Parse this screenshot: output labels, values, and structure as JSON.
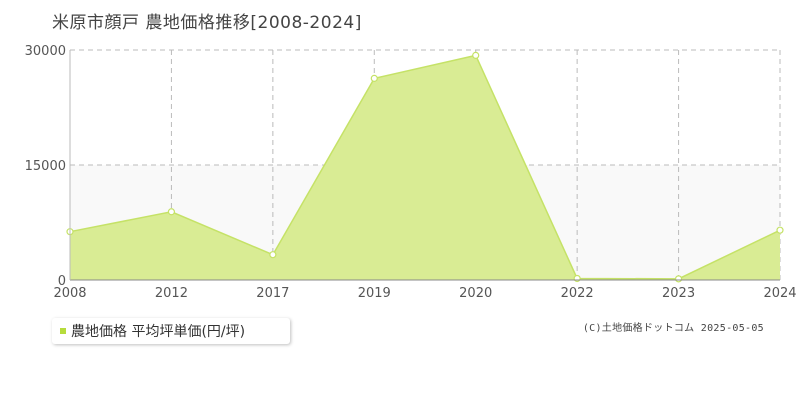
{
  "title": "米原市顔戸 農地価格推移[2008-2024]",
  "legend": {
    "label": "農地価格 平均坪単価(円/坪)"
  },
  "copyright": "(C)土地価格ドットコム 2025-05-05",
  "colors": {
    "fill": "#d9ec94",
    "line": "#c5e267",
    "marker": "#b6dc3c",
    "grid": "#bbbbbb",
    "band": "#f9f9f9"
  },
  "chart_data": {
    "type": "area",
    "title": "米原市顔戸 農地価格推移[2008-2024]",
    "x": [
      "2008",
      "2012",
      "2017",
      "2019",
      "2020",
      "2022",
      "2023",
      "2024"
    ],
    "series": [
      {
        "name": "農地価格 平均坪単価(円/坪)",
        "values": [
          6300,
          8900,
          3300,
          26300,
          29300,
          200,
          150,
          6500
        ]
      }
    ],
    "yticks": [
      0,
      15000,
      30000
    ],
    "ylim": [
      0,
      30000
    ],
    "grid": true,
    "legend_position": "bottom-left"
  }
}
